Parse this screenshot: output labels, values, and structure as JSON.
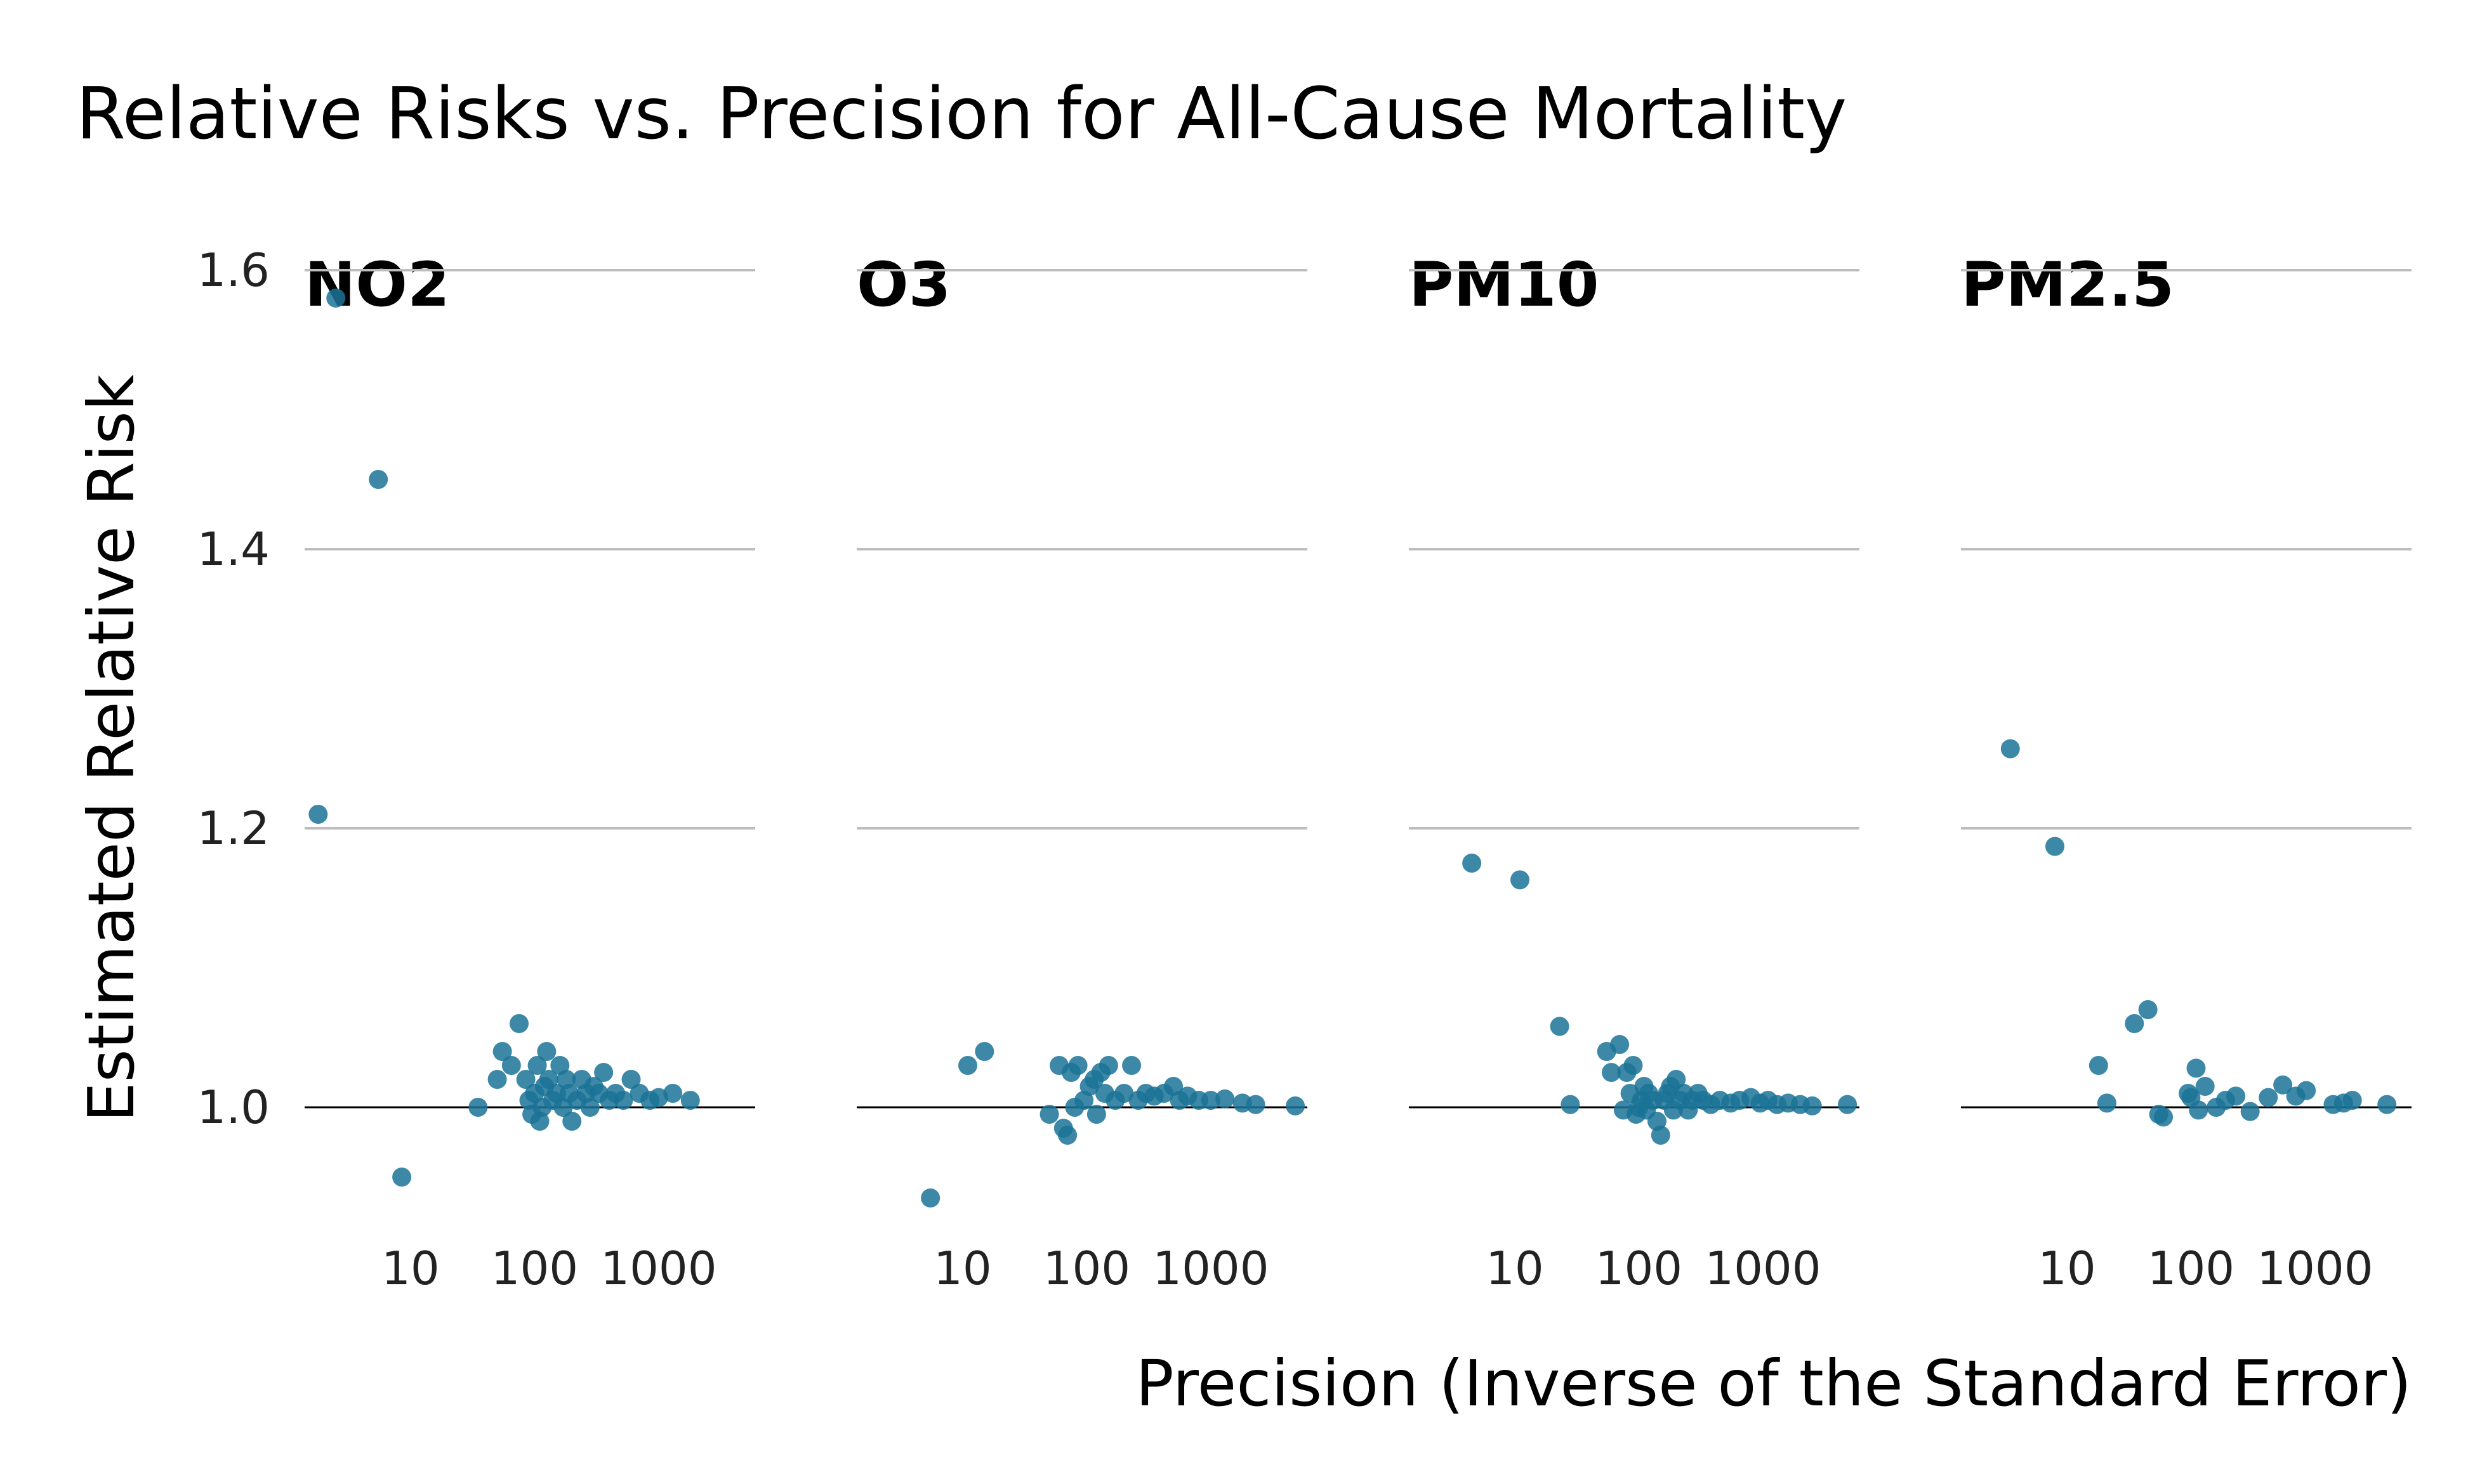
{
  "chart_data": {
    "type": "scatter",
    "title": "Relative Risks vs. Precision for All-Cause Mortality",
    "xlabel": "Precision (Inverse of the Standard Error)",
    "ylabel": "Estimated Relative Risk",
    "x_scale": "log",
    "xlim": [
      1.4,
      6000
    ],
    "ylim": [
      0.92,
      1.63
    ],
    "x_ticks": [
      10,
      100,
      1000
    ],
    "x_tick_labels": [
      "10",
      "100",
      "1000"
    ],
    "y_ticks": [
      1.0,
      1.2,
      1.4,
      1.6
    ],
    "y_tick_labels": [
      "1.0",
      "1.2",
      "1.4",
      "1.6"
    ],
    "reference_line": 1.0,
    "grid": "horizontal",
    "point_color": "#1a7397",
    "panels": [
      {
        "name": "NO2",
        "points": [
          [
            2.5,
            1.58
          ],
          [
            5.5,
            1.45
          ],
          [
            1.8,
            1.21
          ],
          [
            8.5,
            0.95
          ],
          [
            35,
            1.0
          ],
          [
            50,
            1.02
          ],
          [
            55,
            1.04
          ],
          [
            65,
            1.03
          ],
          [
            75,
            1.06
          ],
          [
            85,
            1.02
          ],
          [
            90,
            1.005
          ],
          [
            95,
            0.995
          ],
          [
            100,
            1.01
          ],
          [
            105,
            1.03
          ],
          [
            110,
            0.99
          ],
          [
            115,
            1.0
          ],
          [
            120,
            1.015
          ],
          [
            125,
            1.04
          ],
          [
            130,
            1.02
          ],
          [
            140,
            1.005
          ],
          [
            150,
            1.01
          ],
          [
            160,
            1.03
          ],
          [
            170,
            1.0
          ],
          [
            180,
            1.02
          ],
          [
            190,
            1.01
          ],
          [
            200,
            0.99
          ],
          [
            220,
            1.005
          ],
          [
            240,
            1.02
          ],
          [
            260,
            1.01
          ],
          [
            280,
            1.0
          ],
          [
            300,
            1.015
          ],
          [
            330,
            1.01
          ],
          [
            360,
            1.025
          ],
          [
            400,
            1.005
          ],
          [
            450,
            1.01
          ],
          [
            520,
            1.005
          ],
          [
            600,
            1.02
          ],
          [
            700,
            1.01
          ],
          [
            850,
            1.005
          ],
          [
            1000,
            1.007
          ],
          [
            1300,
            1.01
          ],
          [
            1800,
            1.005
          ]
        ]
      },
      {
        "name": "O3",
        "points": [
          [
            5.5,
            0.935
          ],
          [
            11,
            1.03
          ],
          [
            15,
            1.04
          ],
          [
            50,
            0.995
          ],
          [
            60,
            1.03
          ],
          [
            65,
            0.985
          ],
          [
            70,
            0.98
          ],
          [
            75,
            1.025
          ],
          [
            80,
            1.0
          ],
          [
            85,
            1.03
          ],
          [
            95,
            1.005
          ],
          [
            105,
            1.015
          ],
          [
            115,
            1.02
          ],
          [
            120,
            0.995
          ],
          [
            130,
            1.025
          ],
          [
            140,
            1.01
          ],
          [
            150,
            1.03
          ],
          [
            170,
            1.005
          ],
          [
            200,
            1.01
          ],
          [
            230,
            1.03
          ],
          [
            260,
            1.005
          ],
          [
            300,
            1.01
          ],
          [
            350,
            1.008
          ],
          [
            420,
            1.01
          ],
          [
            500,
            1.015
          ],
          [
            560,
            1.005
          ],
          [
            650,
            1.008
          ],
          [
            800,
            1.005
          ],
          [
            1000,
            1.005
          ],
          [
            1300,
            1.006
          ],
          [
            1800,
            1.003
          ],
          [
            2300,
            1.002
          ],
          [
            4800,
            1.001
          ]
        ]
      },
      {
        "name": "PM10",
        "points": [
          [
            4.5,
            1.175
          ],
          [
            11,
            1.163
          ],
          [
            23,
            1.058
          ],
          [
            28,
            1.002
          ],
          [
            55,
            1.04
          ],
          [
            60,
            1.025
          ],
          [
            70,
            1.045
          ],
          [
            75,
            0.998
          ],
          [
            80,
            1.025
          ],
          [
            85,
            1.01
          ],
          [
            90,
            1.03
          ],
          [
            95,
            0.995
          ],
          [
            100,
            1.0
          ],
          [
            105,
            1.005
          ],
          [
            110,
            1.015
          ],
          [
            115,
            0.998
          ],
          [
            120,
            1.01
          ],
          [
            130,
            1.005
          ],
          [
            140,
            0.99
          ],
          [
            150,
            0.98
          ],
          [
            160,
            1.005
          ],
          [
            170,
            1.01
          ],
          [
            180,
            1.015
          ],
          [
            190,
            0.998
          ],
          [
            200,
            1.02
          ],
          [
            215,
            1.005
          ],
          [
            230,
            1.01
          ],
          [
            250,
            0.998
          ],
          [
            270,
            1.005
          ],
          [
            300,
            1.01
          ],
          [
            330,
            1.005
          ],
          [
            380,
            1.002
          ],
          [
            450,
            1.005
          ],
          [
            550,
            1.003
          ],
          [
            650,
            1.005
          ],
          [
            800,
            1.007
          ],
          [
            950,
            1.003
          ],
          [
            1100,
            1.005
          ],
          [
            1300,
            1.002
          ],
          [
            1600,
            1.003
          ],
          [
            2000,
            1.002
          ],
          [
            2500,
            1.001
          ],
          [
            4800,
            1.002
          ]
        ]
      },
      {
        "name": "PM2.5",
        "points": [
          [
            3.5,
            1.257
          ],
          [
            8,
            1.187
          ],
          [
            18,
            1.03
          ],
          [
            21,
            1.003
          ],
          [
            35,
            1.06
          ],
          [
            45,
            1.07
          ],
          [
            55,
            0.995
          ],
          [
            60,
            0.993
          ],
          [
            95,
            1.01
          ],
          [
            100,
            1.007
          ],
          [
            110,
            1.028
          ],
          [
            115,
            0.998
          ],
          [
            130,
            1.015
          ],
          [
            160,
            1.0
          ],
          [
            190,
            1.005
          ],
          [
            230,
            1.008
          ],
          [
            300,
            0.997
          ],
          [
            420,
            1.007
          ],
          [
            550,
            1.016
          ],
          [
            700,
            1.008
          ],
          [
            850,
            1.012
          ],
          [
            1400,
            1.002
          ],
          [
            1700,
            1.003
          ],
          [
            2000,
            1.005
          ],
          [
            3800,
            1.002
          ]
        ]
      }
    ]
  }
}
